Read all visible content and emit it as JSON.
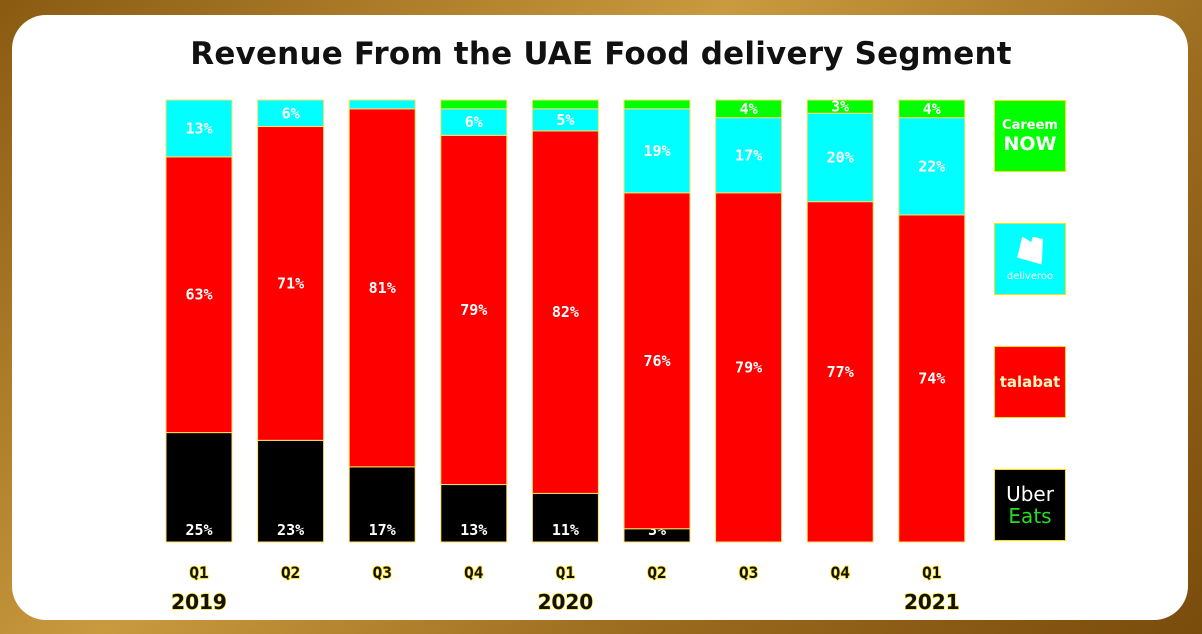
{
  "chart_data": {
    "type": "bar",
    "stacked": true,
    "title": "Revenue From the UAE Food delivery Segment",
    "categories": [
      "Q1",
      "Q2",
      "Q3",
      "Q4",
      "Q1",
      "Q2",
      "Q3",
      "Q4",
      "Q1"
    ],
    "years": [
      {
        "label": "2019",
        "index": 0
      },
      {
        "label": "2020",
        "index": 4
      },
      {
        "label": "2021",
        "index": 8
      }
    ],
    "ylim": [
      0,
      100
    ],
    "unit": "%",
    "series": [
      {
        "name": "Uber Eats",
        "color": "#000000",
        "values": [
          25,
          23,
          17,
          13,
          11,
          3,
          0,
          0,
          0
        ],
        "labels": [
          "25%",
          "23%",
          "17%",
          "13%",
          "11%",
          "3%",
          "",
          "",
          ""
        ]
      },
      {
        "name": "talabat",
        "color": "#ff0000",
        "values": [
          63,
          71,
          81,
          79,
          82,
          76,
          79,
          77,
          74
        ],
        "labels": [
          "63%",
          "71%",
          "81%",
          "79%",
          "82%",
          "76%",
          "79%",
          "77%",
          "74%"
        ]
      },
      {
        "name": "deliveroo",
        "color": "#00ffff",
        "values": [
          13,
          6,
          2,
          6,
          5,
          19,
          17,
          20,
          22
        ],
        "labels": [
          "13%",
          "6%",
          "",
          "6%",
          "5%",
          "19%",
          "17%",
          "20%",
          "22%"
        ]
      },
      {
        "name": "Careem NOW",
        "color": "#00ff00",
        "values": [
          0,
          0,
          0,
          2,
          2,
          2,
          4,
          3,
          4
        ],
        "labels": [
          "",
          "",
          "",
          "",
          "",
          "",
          "4%",
          "3%",
          "4%"
        ]
      }
    ],
    "legend": "right",
    "grid": false
  },
  "legend": {
    "careem": {
      "line1": "Careem",
      "line2": "NOW",
      "color": "#00ff00"
    },
    "deliveroo": {
      "text": "deliveroo",
      "color": "#00ffff"
    },
    "talabat": {
      "text": "talabat",
      "color": "#ff0000"
    },
    "uber": {
      "line1": "Uber",
      "line2": "Eats",
      "color": "#000000",
      "accent": "#22dd22"
    }
  }
}
